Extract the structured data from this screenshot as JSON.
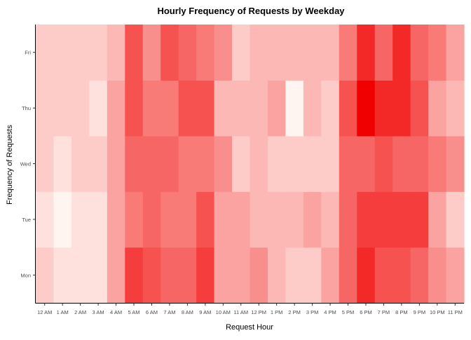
{
  "chart_data": {
    "type": "heatmap",
    "title": "Hourly Frequency of Requests by Weekday",
    "xlabel": "Request Hour",
    "ylabel": "Frequency of Requests",
    "x_categories": [
      "12 AM",
      "1 AM",
      "2 AM",
      "3 AM",
      "4 AM",
      "5 AM",
      "6 AM",
      "7 AM",
      "8 AM",
      "9 AM",
      "10 AM",
      "11 AM",
      "12 PM",
      "1 PM",
      "2 PM",
      "3 PM",
      "4 PM",
      "5 PM",
      "6 PM",
      "7 PM",
      "8 PM",
      "9 PM",
      "10 PM",
      "11 PM"
    ],
    "y_categories": [
      "Mon",
      "Tue",
      "Wed",
      "Thu",
      "Fri"
    ],
    "values": [
      [
        2,
        1,
        1,
        1,
        4,
        9,
        8,
        7,
        7,
        9,
        4,
        4,
        5,
        3,
        2,
        2,
        4,
        7,
        10,
        8,
        8,
        7,
        5,
        4
      ],
      [
        1,
        0,
        1,
        1,
        4,
        6,
        7,
        6,
        6,
        8,
        4,
        4,
        3,
        3,
        3,
        4,
        3,
        7,
        9,
        9,
        9,
        9,
        4,
        2
      ],
      [
        2,
        1,
        2,
        2,
        4,
        7,
        7,
        7,
        6,
        6,
        5,
        2,
        3,
        2,
        2,
        2,
        2,
        7,
        7,
        8,
        7,
        7,
        6,
        5
      ],
      [
        2,
        2,
        2,
        1,
        4,
        8,
        6,
        6,
        8,
        8,
        3,
        3,
        3,
        4,
        0,
        3,
        2,
        8,
        12,
        10,
        10,
        8,
        4,
        3
      ],
      [
        2,
        2,
        2,
        2,
        3,
        8,
        5,
        8,
        7,
        6,
        5,
        2,
        3,
        3,
        3,
        3,
        3,
        6,
        10,
        7,
        10,
        7,
        6,
        4
      ]
    ],
    "value_range": [
      0,
      12
    ],
    "color_low": "#fff5f0",
    "color_high": "#f00000",
    "grid": false,
    "legend": "none"
  }
}
